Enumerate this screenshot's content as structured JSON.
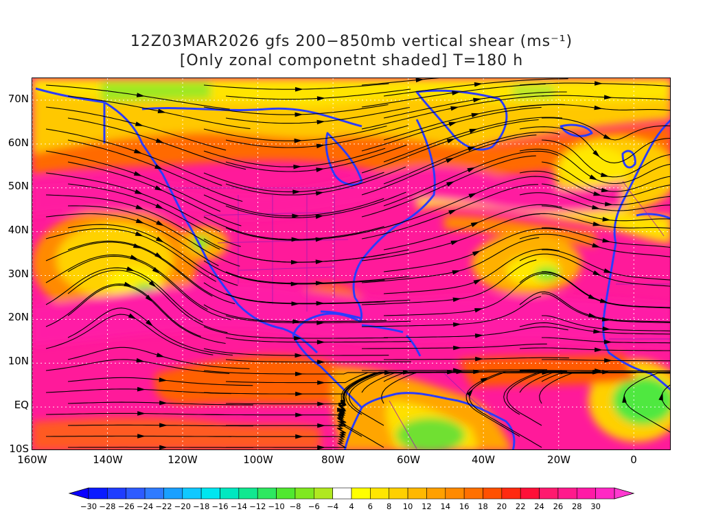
{
  "title_line1": "12Z03MAR2026 gfs 200−850mb vertical shear (ms⁻¹)",
  "title_line2": "[Only zonal componetnt shaded] T=180 h",
  "lat_labels": [
    "70N",
    "60N",
    "50N",
    "40N",
    "30N",
    "20N",
    "10N",
    "EQ",
    "10S"
  ],
  "lat_values": [
    70,
    60,
    50,
    40,
    30,
    20,
    10,
    0,
    -10
  ],
  "lon_labels": [
    "160W",
    "140W",
    "120W",
    "100W",
    "80W",
    "60W",
    "40W",
    "20W",
    "0"
  ],
  "lon_values": [
    -160,
    -140,
    -120,
    -100,
    -80,
    -60,
    -40,
    -20,
    0
  ],
  "map_extent": {
    "lon_min": -160,
    "lon_max": 10,
    "lat_min": -10,
    "lat_max": 75
  },
  "colorbar": {
    "labels": [
      "-30",
      "-28",
      "-26",
      "-24",
      "-22",
      "-20",
      "-18",
      "-16",
      "-14",
      "-12",
      "-10",
      "-8",
      "-6",
      "-4",
      "4",
      "6",
      "8",
      "10",
      "12",
      "14",
      "16",
      "18",
      "20",
      "22",
      "24",
      "26",
      "28",
      "30"
    ],
    "colors": [
      "#0a1bff",
      "#1f3dff",
      "#2d5bff",
      "#2f7bff",
      "#1aa0ff",
      "#10c8ff",
      "#00e6f0",
      "#00e8c0",
      "#10e890",
      "#2de860",
      "#50e830",
      "#80e820",
      "#b0e820",
      "#ffffff",
      "#ffff00",
      "#ffe600",
      "#ffd000",
      "#ffb800",
      "#ffa000",
      "#ff8a00",
      "#ff7000",
      "#ff5000",
      "#ff2a10",
      "#ff1038",
      "#ff1a6e",
      "#ff1a8c",
      "#ff1aa6",
      "#ff28c4"
    ]
  }
}
